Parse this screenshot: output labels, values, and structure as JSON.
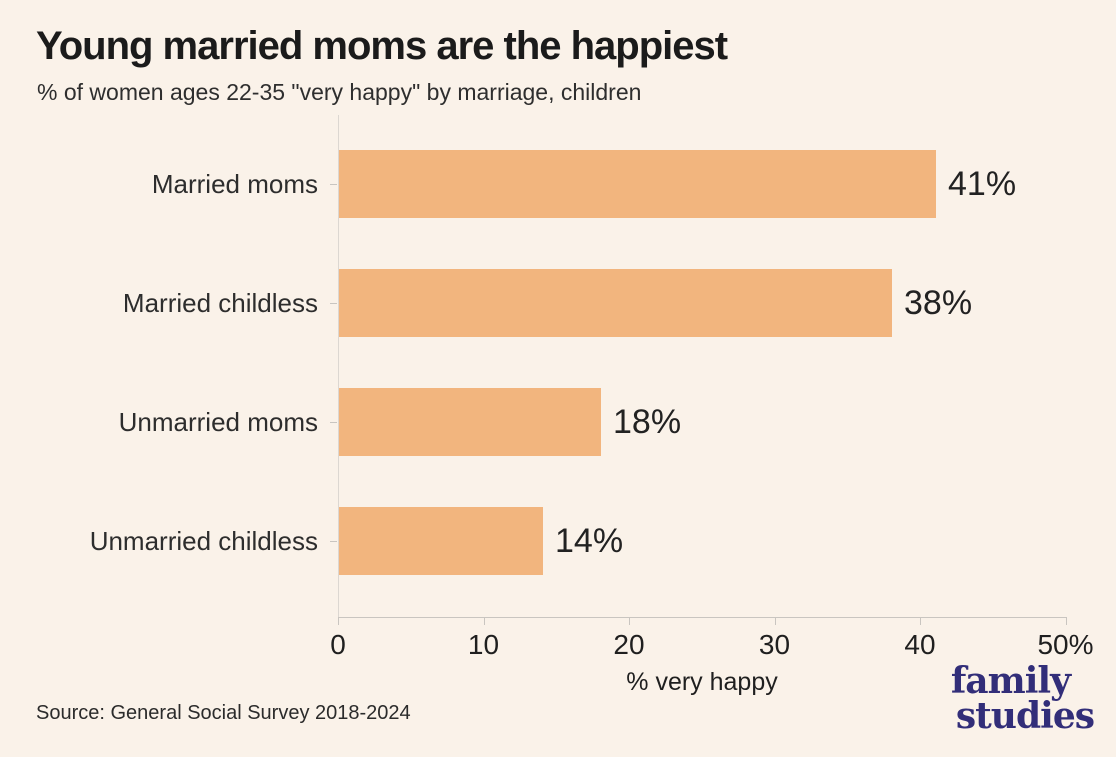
{
  "page": {
    "background_color": "#faf2e9"
  },
  "header": {
    "title": "Young married moms are the happiest",
    "subtitle": "% of women ages 22-35 \"very happy\" by marriage, children"
  },
  "chart_data": {
    "type": "bar",
    "orientation": "horizontal",
    "title": "Young married moms are the happiest",
    "subtitle": "% of women ages 22-35 \"very happy\" by marriage, children",
    "categories": [
      "Married moms",
      "Married childless",
      "Unmarried moms",
      "Unmarried childless"
    ],
    "values": [
      41,
      38,
      18,
      14
    ],
    "value_labels": [
      "41%",
      "38%",
      "18%",
      "14%"
    ],
    "xlabel": "% very happy",
    "ylabel": "",
    "xlim": [
      0,
      50
    ],
    "x_ticks": [
      0,
      10,
      20,
      30,
      40,
      50
    ],
    "x_tick_labels": [
      "0",
      "10",
      "20",
      "30",
      "40",
      "50%"
    ],
    "bar_color": "#f2b57e",
    "axis_color": "#c9c5c0",
    "grid": false,
    "legend": null
  },
  "footer": {
    "source": "Source: General Social Survey 2018-2024",
    "logo_line1": "family",
    "logo_line2": "studies",
    "logo_color": "#322e79"
  }
}
